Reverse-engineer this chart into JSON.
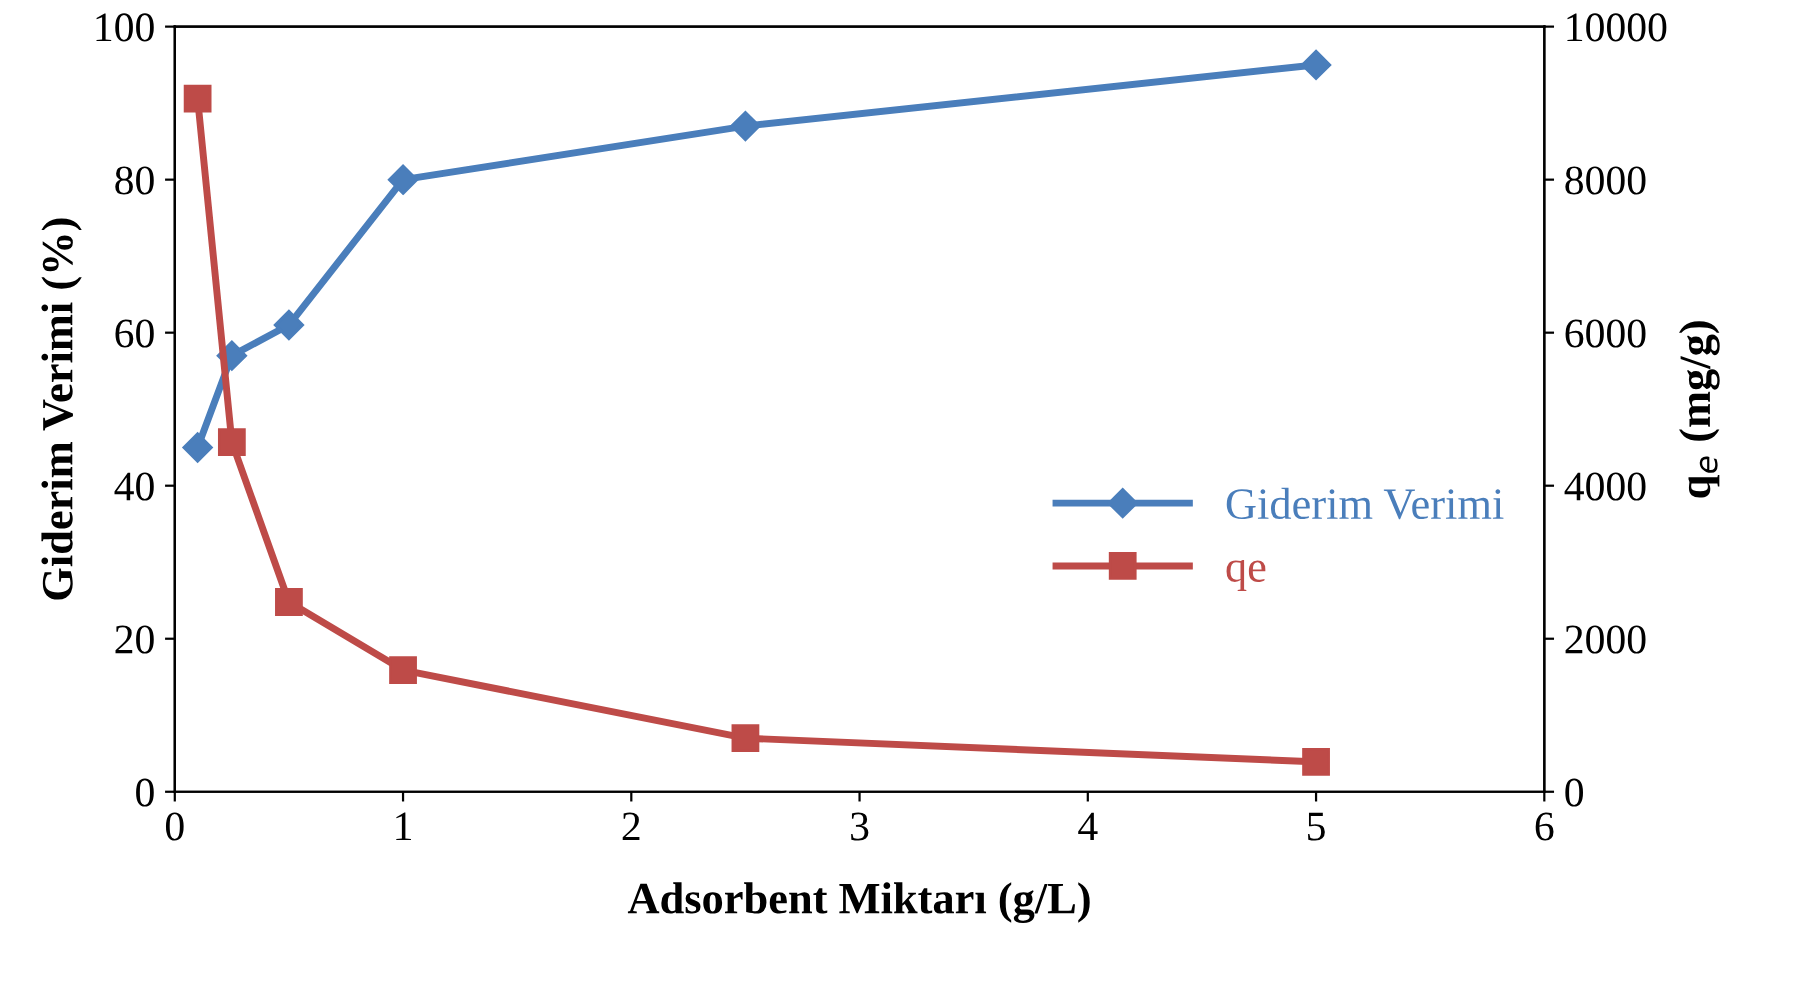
{
  "chart_data": {
    "type": "line",
    "xlabel": "Adsorbent Miktarı (g/L)",
    "ylabel": "Giderim Verimi (%)",
    "y2label": "q$_{e}$ (mg/g)",
    "xlim": [
      0,
      6
    ],
    "xticks": [
      0,
      1,
      2,
      3,
      4,
      5,
      6
    ],
    "ylim": [
      0,
      100
    ],
    "yticks": [
      0,
      20,
      40,
      60,
      80,
      100
    ],
    "y2lim": [
      0,
      10000
    ],
    "y2ticks": [
      0,
      2000,
      4000,
      6000,
      8000,
      10000
    ],
    "grid": false,
    "legend": "right",
    "series": [
      {
        "name": "Giderim Verimi",
        "color": "#4a7ebb",
        "marker": "diamond",
        "x": [
          0.1,
          0.25,
          0.5,
          1,
          2.5,
          5
        ],
        "values": [
          45,
          57,
          61,
          80,
          87,
          95
        ]
      },
      {
        "name": "qe",
        "color": "#be4b48",
        "marker": "square",
        "axis": "y2",
        "x": [
          0.1,
          0.25,
          0.5,
          1,
          2.5,
          5
        ],
        "values": [
          9060,
          4570,
          2480,
          1590,
          700,
          390
        ]
      }
    ]
  }
}
